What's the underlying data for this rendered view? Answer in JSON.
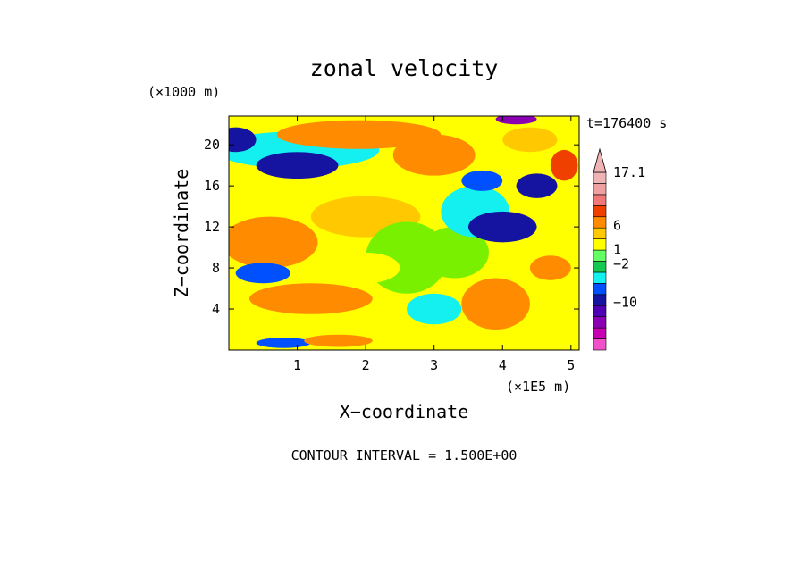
{
  "chart_data": {
    "type": "heatmap",
    "title": "zonal velocity",
    "time_label": "t=176400 s",
    "xlabel": "X−coordinate",
    "ylabel": "Z−coordinate",
    "x_unit": "(×1E5 m)",
    "y_unit": "(×1000 m)",
    "xlim": [
      0,
      5.12
    ],
    "ylim": [
      0,
      22.8
    ],
    "x_ticks": [
      "1",
      "2",
      "3",
      "4",
      "5"
    ],
    "y_ticks": [
      "4",
      "8",
      "12",
      "16",
      "20"
    ],
    "footer": "CONTOUR INTERVAL = 1.500E+00",
    "colorbar": {
      "labels": [
        "17.1",
        "6",
        "1",
        "−2",
        "−10"
      ],
      "label_values": [
        17.1,
        6,
        1,
        -2,
        -10
      ],
      "colors": [
        "#f050c8",
        "#c800b4",
        "#8c00b4",
        "#5000b4",
        "#1414a0",
        "#0050ff",
        "#14f0f0",
        "#14c850",
        "#64ff64",
        "#ffff00",
        "#ffc800",
        "#ff8c00",
        "#f04000",
        "#f07878",
        "#f0a0a0",
        "#f0b4b4"
      ],
      "arrow_color": "#f0b4b4"
    },
    "field_palette": [
      "#ff8c00",
      "#ffc800",
      "#ffff00",
      "#78f000",
      "#14f0f0",
      "#0050ff",
      "#1414a0",
      "#8c00b4",
      "#f04000"
    ]
  }
}
